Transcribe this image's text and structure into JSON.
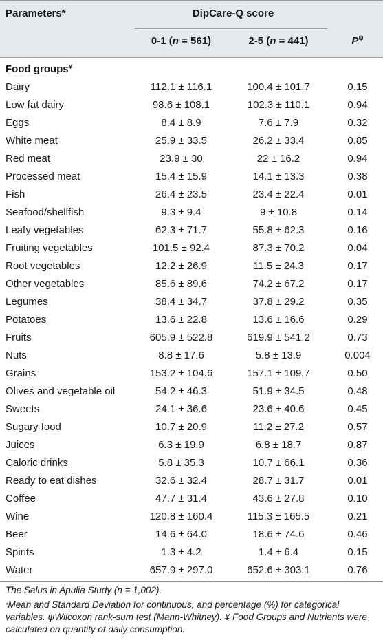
{
  "header": {
    "col_parameters": "Parameters*",
    "col_group": "DipCare-Q score",
    "col_low_prefix": "0-1 (",
    "col_low_n": "n",
    "col_low_suffix": " = 561)",
    "col_high_prefix": "2-5 (",
    "col_high_n": "n",
    "col_high_suffix": " = 441)",
    "col_p": "P",
    "col_p_mark": "ψ"
  },
  "section": {
    "label": "Food groups",
    "mark": "¥"
  },
  "rows": [
    {
      "name": "Dairy",
      "low": "112.1 ± 116.1",
      "high": "100.4 ± 101.7",
      "p": "0.15"
    },
    {
      "name": "Low fat dairy",
      "low": "98.6 ± 108.1",
      "high": "102.3 ± 110.1",
      "p": "0.94"
    },
    {
      "name": "Eggs",
      "low": "8.4 ± 8.9",
      "high": "7.6 ± 7.9",
      "p": "0.32"
    },
    {
      "name": "White meat",
      "low": "25.9 ± 33.5",
      "high": "26.2 ± 33.4",
      "p": "0.85"
    },
    {
      "name": "Red meat",
      "low": "23.9 ± 30",
      "high": "22 ± 16.2",
      "p": "0.94"
    },
    {
      "name": "Processed meat",
      "low": "15.4 ± 15.9",
      "high": "14.1 ± 13.3",
      "p": "0.38"
    },
    {
      "name": "Fish",
      "low": "26.4 ± 23.5",
      "high": "23.4 ± 22.4",
      "p": "0.01"
    },
    {
      "name": "Seafood/shellfish",
      "low": "9.3 ± 9.4",
      "high": "9 ± 10.8",
      "p": "0.14"
    },
    {
      "name": "Leafy vegetables",
      "low": "62.3 ± 71.7",
      "high": "55.8 ± 62.3",
      "p": "0.16"
    },
    {
      "name": "Fruiting vegetables",
      "low": "101.5 ± 92.4",
      "high": "87.3 ± 70.2",
      "p": "0.04"
    },
    {
      "name": "Root vegetables",
      "low": "12.2 ± 26.9",
      "high": "11.5 ± 24.3",
      "p": "0.17"
    },
    {
      "name": "Other vegetables",
      "low": "85.6 ± 89.6",
      "high": "74.2 ± 67.2",
      "p": "0.17"
    },
    {
      "name": "Legumes",
      "low": "38.4 ± 34.7",
      "high": "37.8 ± 29.2",
      "p": "0.35"
    },
    {
      "name": "Potatoes",
      "low": "13.6 ± 22.8",
      "high": "13.6 ± 16.6",
      "p": "0.29"
    },
    {
      "name": "Fruits",
      "low": "605.9 ± 522.8",
      "high": "619.9 ± 541.2",
      "p": "0.73"
    },
    {
      "name": "Nuts",
      "low": "8.8 ± 17.6",
      "high": "5.8 ± 13.9",
      "p": "0.004"
    },
    {
      "name": "Grains",
      "low": "153.2 ± 104.6",
      "high": "157.1 ± 109.7",
      "p": "0.50"
    },
    {
      "name": "Olives and vegetable oil",
      "low": "54.2 ± 46.3",
      "high": "51.9 ± 34.5",
      "p": "0.48"
    },
    {
      "name": "Sweets",
      "low": "24.1 ± 36.6",
      "high": "23.6 ± 40.6",
      "p": "0.45"
    },
    {
      "name": "Sugary food",
      "low": "10.7 ± 20.9",
      "high": "11.2 ± 27.2",
      "p": "0.57"
    },
    {
      "name": "Juices",
      "low": "6.3 ± 19.9",
      "high": "6.8 ± 18.7",
      "p": "0.87"
    },
    {
      "name": "Caloric drinks",
      "low": "5.8 ± 35.3",
      "high": "10.7 ± 66.1",
      "p": "0.36"
    },
    {
      "name": "Ready to eat dishes",
      "low": "32.6 ± 32.4",
      "high": "28.7 ± 31.7",
      "p": "0.01"
    },
    {
      "name": "Coffee",
      "low": "47.7 ± 31.4",
      "high": "43.6 ± 27.8",
      "p": "0.10"
    },
    {
      "name": "Wine",
      "low": "120.8 ± 160.4",
      "high": "115.3 ± 165.5",
      "p": "0.21"
    },
    {
      "name": "Beer",
      "low": "14.6 ± 64.0",
      "high": "18.6 ± 74.6",
      "p": "0.46"
    },
    {
      "name": "Spirits",
      "low": "1.3 ± 4.2",
      "high": "1.4 ± 6.4",
      "p": "0.15"
    },
    {
      "name": "Water",
      "low": "657.9 ± 297.0",
      "high": "652.6 ± 303.1",
      "p": "0.76"
    }
  ],
  "footnotes": {
    "study": "The Salus in Apulia Study (n = 1,002).",
    "star_mark": "*",
    "notes": "Mean and Standard Deviation for continuous, and percentage (%) for categorical variables. ψWilcoxon rank-sum test (Mann-Whitney). ¥ Food Groups and Nutrients were calculated on quantity of daily consumption."
  }
}
